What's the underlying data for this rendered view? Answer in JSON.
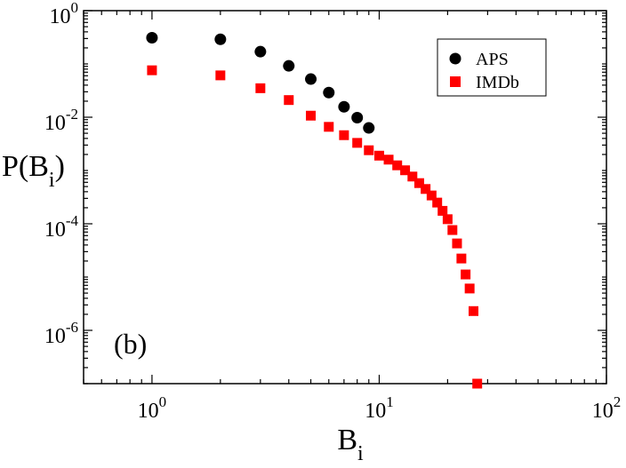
{
  "chart_data": {
    "type": "scatter",
    "panel_label": "(b)",
    "xscale": "log",
    "yscale": "log",
    "xlim": [
      0.5,
      100
    ],
    "ylim": [
      1e-07,
      1
    ],
    "xlabel": {
      "base": "B",
      "sub": "i"
    },
    "ylabel": {
      "pre": "P(B",
      "sub": "i",
      "post": ")"
    },
    "x_ticks": [
      {
        "base": "10",
        "exp": "0"
      },
      {
        "base": "10",
        "exp": "1"
      },
      {
        "base": "10",
        "exp": "2"
      }
    ],
    "y_ticks": [
      {
        "base": "10",
        "exp": "0"
      },
      {
        "base": "10",
        "exp": "-2"
      },
      {
        "base": "10",
        "exp": "-4"
      },
      {
        "base": "10",
        "exp": "-6"
      }
    ],
    "legend": {
      "position": "top-right"
    },
    "series": [
      {
        "name": "APS",
        "marker": "circle",
        "color": "#000000",
        "x": [
          1,
          2,
          3,
          4,
          5,
          6,
          7,
          8,
          9
        ],
        "y": [
          0.31,
          0.29,
          0.17,
          0.092,
          0.052,
          0.029,
          0.0157,
          0.0098,
          0.0063
        ]
      },
      {
        "name": "IMDb",
        "marker": "square",
        "color": "#ff0000",
        "x": [
          1,
          2,
          3,
          4,
          5,
          6,
          7,
          8,
          9,
          10,
          11,
          12,
          13,
          14,
          15,
          16,
          17,
          18,
          19,
          20,
          21,
          22,
          23,
          24,
          25,
          26,
          27
        ],
        "y": [
          0.076,
          0.061,
          0.035,
          0.021,
          0.0107,
          0.0066,
          0.0046,
          0.0033,
          0.0024,
          0.0019,
          0.0016,
          0.00125,
          0.00101,
          0.00077,
          0.00058,
          0.00045,
          0.00034,
          0.00025,
          0.000175,
          0.000122,
          7.63e-05,
          4.28e-05,
          2.23e-05,
          1.12e-05,
          6.1e-06,
          2.3e-06,
          1e-07
        ]
      }
    ]
  }
}
